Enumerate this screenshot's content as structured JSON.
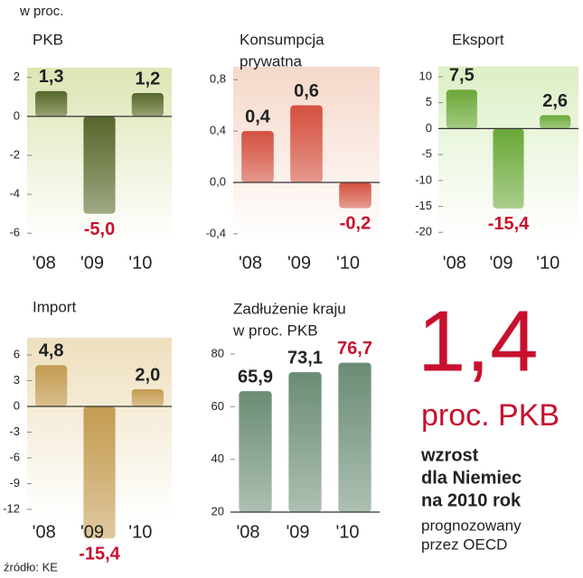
{
  "unit_note": "w proc.",
  "source": "źródło: KE",
  "highlight": {
    "number": "1,4",
    "unit": "proc. PKB",
    "lines": [
      "wzrost",
      "dla Niemiec",
      "na 2010 rok"
    ],
    "note_lines": [
      "prognozowany",
      "przez OECD"
    ],
    "color": "#c8102e"
  },
  "chart_data": [
    {
      "type": "bar",
      "title": [
        "PKB"
      ],
      "categories": [
        "'08",
        "'09",
        "'10"
      ],
      "values": [
        1.3,
        -5.0,
        1.2
      ],
      "value_labels": [
        "1,3",
        "-5,0",
        "1,2"
      ],
      "value_label_colors": [
        "#222222",
        "#c8102e",
        "#222222"
      ],
      "color": "#56672c",
      "background": "#dde5b4",
      "ylim": [
        -6.5,
        2.5
      ],
      "yticks": [
        2,
        0,
        -2,
        -4,
        -6
      ]
    },
    {
      "type": "bar",
      "title": [
        "Konsumpcja",
        "prywatna"
      ],
      "categories": [
        "'08",
        "'09",
        "'10"
      ],
      "values": [
        0.4,
        0.6,
        -0.2
      ],
      "value_labels": [
        "0,4",
        "0,6",
        "-0,2"
      ],
      "value_label_colors": [
        "#222222",
        "#222222",
        "#c8102e"
      ],
      "color": "#d4503f",
      "background": "#f5d8c9",
      "ylim": [
        -0.45,
        0.9
      ],
      "yticks": [
        {
          "value": 0.8,
          "label": "0,8"
        },
        {
          "value": 0.4,
          "label": "0,4"
        },
        {
          "value": 0.0,
          "label": "0,0"
        },
        {
          "value": -0.4,
          "label": "-0,4"
        }
      ]
    },
    {
      "type": "bar",
      "title": [
        "Eksport"
      ],
      "categories": [
        "'08",
        "'09",
        "'10"
      ],
      "values": [
        7.5,
        -15.4,
        2.6
      ],
      "value_labels": [
        "7,5",
        "-15,4",
        "2,6"
      ],
      "value_label_colors": [
        "#222222",
        "#c8102e",
        "#222222"
      ],
      "color": "#6aa838",
      "background": "#dcefc6",
      "ylim": [
        -21,
        12
      ],
      "yticks": [
        10,
        5,
        0,
        -5,
        -10,
        -15,
        -20
      ]
    },
    {
      "type": "bar",
      "title": [
        "Import"
      ],
      "categories": [
        "'08",
        "'09",
        "'10"
      ],
      "values": [
        4.8,
        -15.4,
        2.0
      ],
      "value_labels": [
        "4,8",
        "-15,4",
        "2,0"
      ],
      "value_label_colors": [
        "#222222",
        "#c8102e",
        "#222222"
      ],
      "color": "#c49c52",
      "background": "#eedfbd",
      "ylim": [
        -13,
        8
      ],
      "yticks": [
        6,
        3,
        0,
        -3,
        -6,
        -9,
        -12
      ]
    },
    {
      "type": "bar",
      "title": [
        "Zadłużenie kraju",
        "w proc. PKB"
      ],
      "categories": [
        "'08",
        "'09",
        "'10"
      ],
      "values": [
        65.9,
        73.1,
        76.7
      ],
      "value_labels": [
        "65,9",
        "73,1",
        "76,7"
      ],
      "value_label_colors": [
        "#222222",
        "#222222",
        "#c8102e"
      ],
      "color": "#6a8c74",
      "background": "#ffffff",
      "ylim": [
        20,
        86
      ],
      "yticks": [
        80,
        60,
        40,
        20
      ]
    }
  ]
}
